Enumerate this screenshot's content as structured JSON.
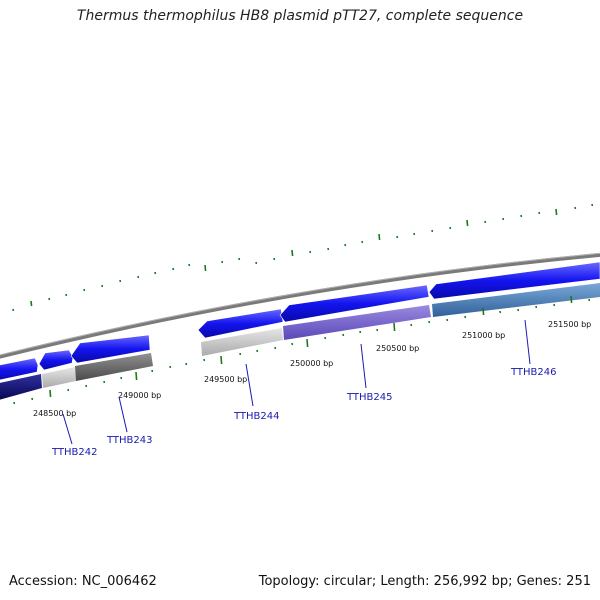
{
  "title": "Thermus thermophilus HB8 plasmid pTT27, complete sequence",
  "accession": "Accession: NC_006462",
  "summary": "Topology: circular; Length: 256,992 bp; Genes: 251",
  "bp_labels": [
    "248500 bp",
    "249000 bp",
    "249500 bp",
    "250000 bp",
    "250500 bp",
    "251000 bp",
    "251500 bp"
  ],
  "genes": [
    "TTHB242",
    "TTHB243",
    "TTHB244",
    "TTHB245",
    "TTHB246"
  ],
  "colors": {
    "tick": "#1a7a1a",
    "backbone": "#808080",
    "arrow_blue": "#1414f0",
    "dark_navy": "#0a0a78",
    "light_gray": "#c8c8c8",
    "dark_gray": "#6a6a6a",
    "purple": "#7a68d0",
    "steel_blue": "#4f86b8",
    "label_blue": "#1a1ab0"
  }
}
